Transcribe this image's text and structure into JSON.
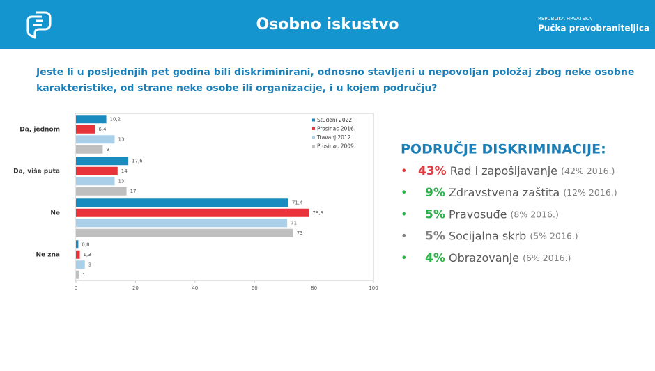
{
  "header": {
    "title": "Osobno iskustvo",
    "org_small": "REPUBLIKA HRVATSKA",
    "org": "Pučka pravobraniteljica"
  },
  "question": [
    "Jeste li u posljednjih pet godina bili diskriminirani, odnosno stavljeni u nepovoljan položaj zbog neke osobne",
    "karakteristike, od strane neke osobe ili organizacije, i u kojem području?"
  ],
  "chart_data": {
    "type": "hbar",
    "categories": [
      "Da, jednom",
      "Da, više puta",
      "Ne",
      "Ne zna"
    ],
    "series": [
      {
        "name": "Studeni 2022.",
        "color": "#1a8bbf",
        "values": [
          10.2,
          17.6,
          71.4,
          0.8
        ],
        "value_labels": [
          "10,2",
          "17,6",
          "71,4",
          "0,8"
        ]
      },
      {
        "name": "Prosinac 2016.",
        "color": "#e8333b",
        "values": [
          6.4,
          14,
          78.3,
          1.3
        ],
        "value_labels": [
          "6,4",
          "14",
          "78,3",
          "1,3"
        ]
      },
      {
        "name": "Travanj 2012.",
        "color": "#a9d0e8",
        "values": [
          13,
          13,
          71,
          3
        ]
      },
      {
        "name": "Prosinac 2009.",
        "color": "#bfbfbf",
        "values": [
          9,
          17,
          73,
          1
        ]
      }
    ],
    "xlim": [
      0,
      100
    ],
    "xticks": [
      0,
      20,
      40,
      60,
      80,
      100
    ],
    "grid": false,
    "legend": "top-right"
  },
  "areas": {
    "title": "PODRUČJE DISKRIMINACIJE:",
    "items": [
      {
        "pct": "43%",
        "label": "Rad i zapošljavanje",
        "note": "(42% 2016.)",
        "color": "#e0393e"
      },
      {
        "pct": "9%",
        "label": "Zdravstvena zaštita",
        "note": "(12% 2016.)",
        "color": "#2bb34a"
      },
      {
        "pct": "5%",
        "label": "Pravosuđe",
        "note": "(8% 2016.)",
        "color": "#2bb34a"
      },
      {
        "pct": "5%",
        "label": "Socijalna skrb",
        "note": "(5% 2016.)",
        "color": "#808080"
      },
      {
        "pct": "4%",
        "label": "Obrazovanje",
        "note": "(6% 2016.)",
        "color": "#2bb34a"
      }
    ]
  }
}
